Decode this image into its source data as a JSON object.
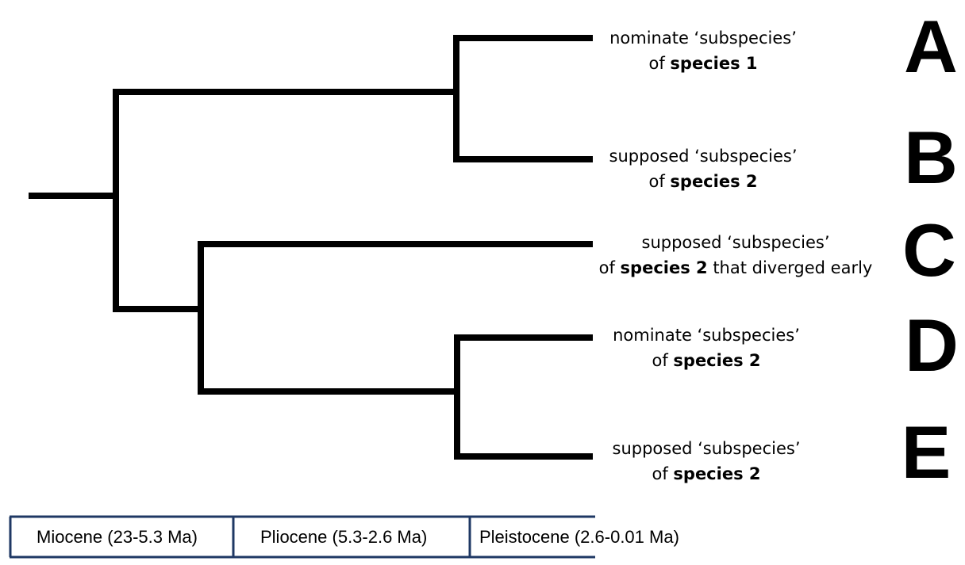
{
  "tips": [
    {
      "id": "A",
      "pre": "nominate ‘subspecies’",
      "of": "of ",
      "species": "species 1",
      "post": ""
    },
    {
      "id": "B",
      "pre": "supposed ‘subspecies’",
      "of": "of ",
      "species": "species 2",
      "post": ""
    },
    {
      "id": "C",
      "pre": "supposed ‘subspecies’",
      "of": "of ",
      "species": "species 2",
      "post": " that diverged early"
    },
    {
      "id": "D",
      "pre": "nominate ‘subspecies’",
      "of": "of ",
      "species": "species 2",
      "post": ""
    },
    {
      "id": "E",
      "pre": "supposed ‘subspecies’",
      "of": "of ",
      "species": "species 2",
      "post": ""
    }
  ],
  "letters": [
    "A",
    "B",
    "C",
    "D",
    "E"
  ],
  "timescale": {
    "epochs": [
      "Miocene (23-5.3 Ma)",
      "Pliocene (5.3-2.6 Ma)",
      "Pleistocene (2.6-0.01 Ma)"
    ]
  },
  "colors": {
    "tree": "#000000",
    "timescale": "#1f3864",
    "text": "#000000"
  }
}
